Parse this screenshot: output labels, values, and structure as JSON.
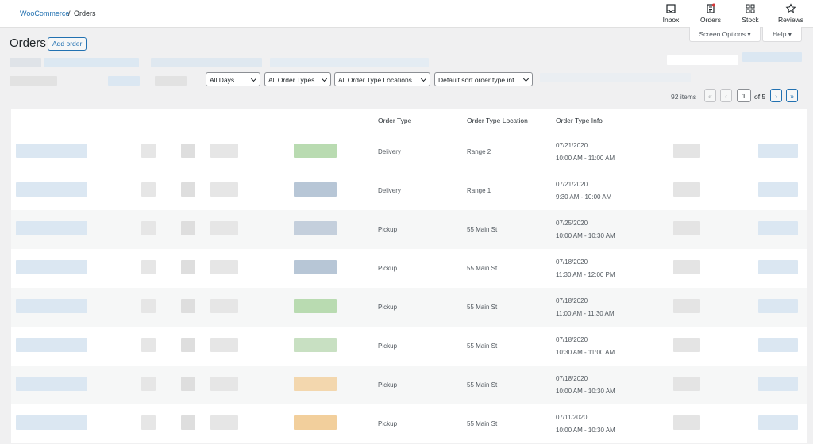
{
  "breadcrumb": {
    "link": "WooCommerce",
    "separator": "/",
    "current": "Orders"
  },
  "nav": [
    "Inbox",
    "Orders",
    "Stock",
    "Reviews"
  ],
  "screen_options": "Screen Options",
  "help": "Help",
  "page_title": "Orders",
  "add_order": "Add order",
  "filters": [
    "All Days",
    "All Order Types",
    "All Order Type Locations",
    "Default sort order type inf"
  ],
  "pagination": {
    "items": "92 items",
    "first": "«",
    "prev": "‹",
    "current": "1",
    "of": "of 5",
    "next": "›",
    "last": "»"
  },
  "table": {
    "headers": [
      "Order Type",
      "Order Type Location",
      "Order Type Info"
    ],
    "rows": [
      [
        "Delivery",
        "Range 2",
        "07/21/2020",
        "10:00 AM - 11:00 AM"
      ],
      [
        "Delivery",
        "Range 1",
        "07/21/2020",
        "9:30 AM - 10:00 AM"
      ],
      [
        "Pickup",
        "55 Main St",
        "07/25/2020",
        "10:00 AM - 10:30 AM"
      ],
      [
        "Pickup",
        "55 Main St",
        "07/18/2020",
        "11:30 AM - 12:00 PM"
      ],
      [
        "Pickup",
        "55 Main St",
        "07/18/2020",
        "11:00 AM - 11:30 AM"
      ],
      [
        "Pickup",
        "55 Main St",
        "07/18/2020",
        "10:30 AM - 11:00 AM"
      ],
      [
        "Pickup",
        "55 Main St",
        "07/18/2020",
        "10:00 AM - 10:30 AM"
      ],
      [
        "Pickup",
        "55 Main St",
        "07/11/2020",
        "10:00 AM - 10:30 AM"
      ]
    ]
  }
}
